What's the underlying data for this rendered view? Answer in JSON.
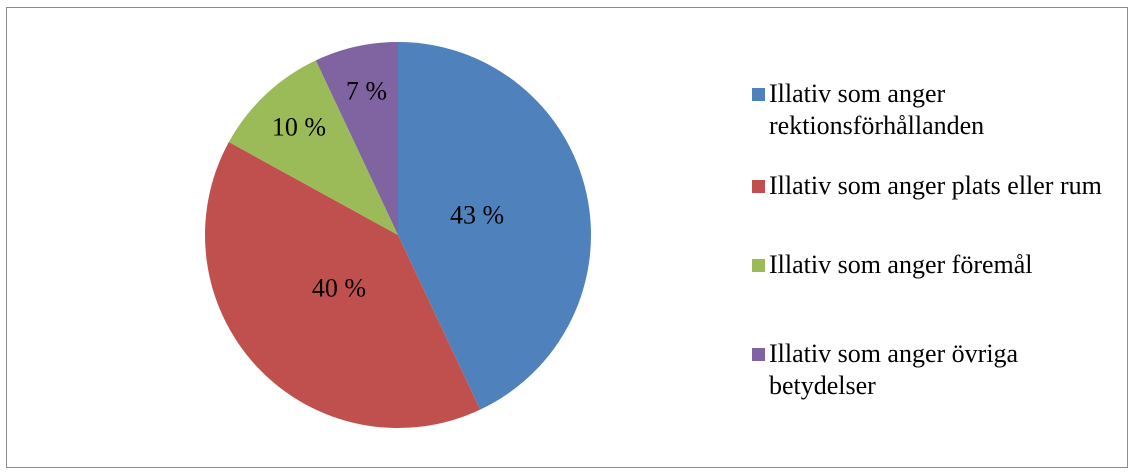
{
  "chart_data": {
    "type": "pie",
    "categories": [
      "Illativ som anger rektionsförhållanden",
      "Illativ som anger plats eller rum",
      "Illativ som anger föremål",
      "Illativ som anger övriga betydelser"
    ],
    "values": [
      43,
      40,
      10,
      7
    ],
    "value_labels": [
      "43 %",
      "40 %",
      "10 %",
      "7 %"
    ],
    "colors": [
      "#4f81bd",
      "#c0504d",
      "#9bbb59",
      "#8064a2"
    ],
    "legend": "right"
  }
}
